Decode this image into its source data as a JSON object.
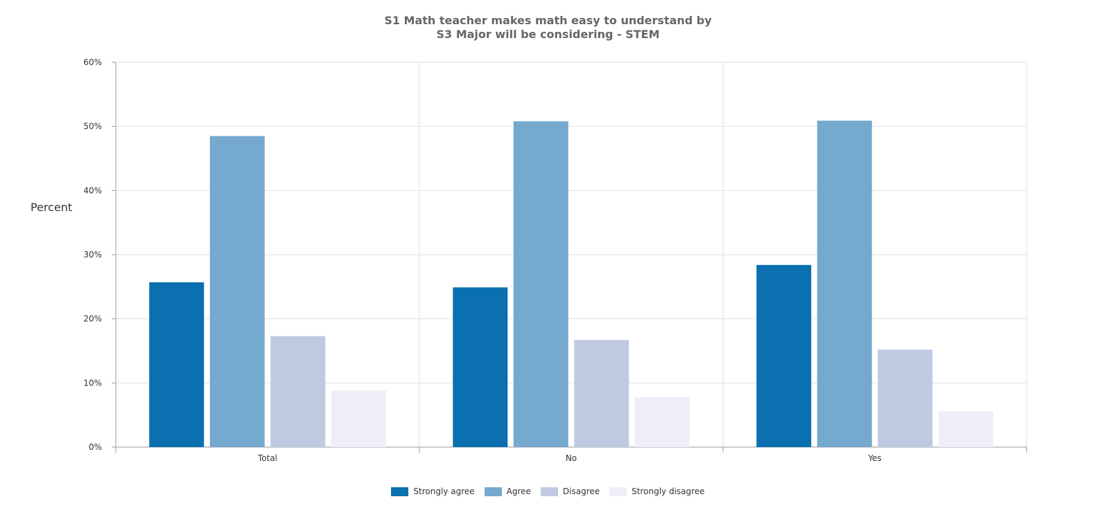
{
  "chart_data": {
    "type": "bar",
    "title": [
      "S1 Math teacher makes math easy to understand by",
      "S3 Major will be considering - STEM"
    ],
    "ylabel": "Percent",
    "xlabel": "",
    "ylim": [
      0,
      60
    ],
    "yticks": [
      "0%",
      "10%",
      "20%",
      "30%",
      "40%",
      "50%",
      "60%"
    ],
    "categories": [
      "Total",
      "No",
      "Yes"
    ],
    "series": [
      {
        "name": "Strongly agree",
        "color": "#0a70b0",
        "values": [
          25.7,
          24.9,
          28.4
        ]
      },
      {
        "name": "Agree",
        "color": "#76a9ce",
        "values": [
          48.5,
          50.8,
          50.9
        ]
      },
      {
        "name": "Disagree",
        "color": "#bfcae1",
        "values": [
          17.3,
          16.7,
          15.2
        ]
      },
      {
        "name": "Strongly disagree",
        "color": "#efedf7",
        "values": [
          8.8,
          7.8,
          5.6
        ]
      }
    ],
    "grid": true,
    "legend": "bottom-center"
  }
}
